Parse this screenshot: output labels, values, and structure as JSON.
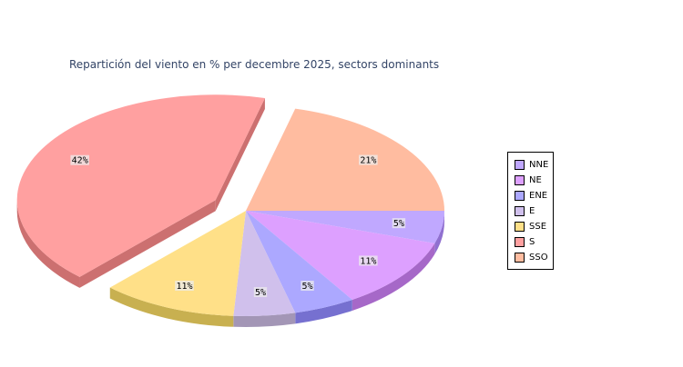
{
  "chart_data": {
    "type": "pie",
    "style": "3d-exploded",
    "title": "Repartición del viento en % per decembre 2025, sectors dominants",
    "legend_position": "right",
    "slices": [
      {
        "label": "NNE",
        "value": 5,
        "display": "5%",
        "color": "#c0a8ff",
        "side": "#9070d0"
      },
      {
        "label": "NE",
        "value": 11,
        "display": "11%",
        "color": "#dda0ff",
        "side": "#a668c8"
      },
      {
        "label": "ENE",
        "value": 5,
        "display": "5%",
        "color": "#aca8ff",
        "side": "#7670d0"
      },
      {
        "label": "E",
        "value": 5,
        "display": "5%",
        "color": "#d0c0ec",
        "side": "#a396b6"
      },
      {
        "label": "SSE",
        "value": 11,
        "display": "11%",
        "color": "#ffe088",
        "side": "#c8b050"
      },
      {
        "label": "S",
        "value": 42,
        "display": "42%",
        "color": "#ffa0a0",
        "side": "#cc7070",
        "exploded": true
      },
      {
        "label": "SSO",
        "value": 21,
        "display": "21%",
        "color": "#ffbca0",
        "side": "#cc9070"
      }
    ]
  }
}
